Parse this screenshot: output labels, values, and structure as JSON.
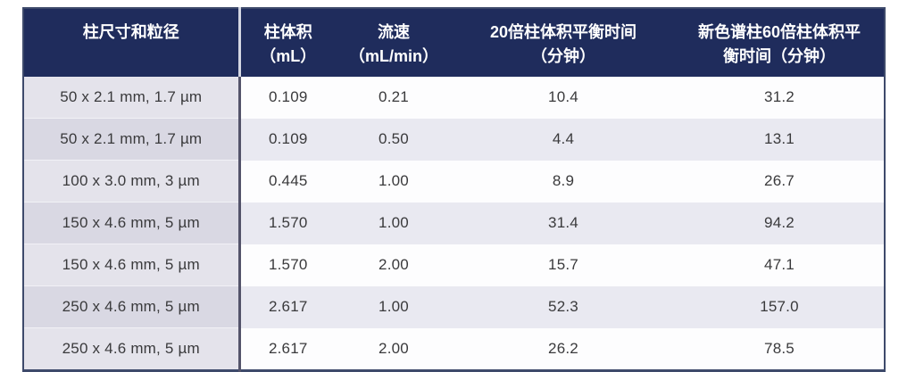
{
  "chart_data": {
    "type": "table",
    "columns": [
      "柱尺寸和粒径",
      "柱体积\n（mL）",
      "流速\n（mL/min）",
      "20倍柱体积平衡时间\n（分钟）",
      "新色谱柱60倍柱体积平\n衡时间（分钟）"
    ],
    "rows": [
      [
        "50 x 2.1 mm, 1.7 µm",
        "0.109",
        "0.21",
        "10.4",
        "31.2"
      ],
      [
        "50 x 2.1 mm, 1.7 µm",
        "0.109",
        "0.50",
        "4.4",
        "13.1"
      ],
      [
        "100 x 3.0 mm, 3 µm",
        "0.445",
        "1.00",
        "8.9",
        "26.7"
      ],
      [
        "150 x 4.6 mm, 5 µm",
        "1.570",
        "1.00",
        "31.4",
        "94.2"
      ],
      [
        "150 x 4.6 mm, 5 µm",
        "1.570",
        "2.00",
        "15.7",
        "47.1"
      ],
      [
        "250 x 4.6 mm, 5 µm",
        "2.617",
        "1.00",
        "52.3",
        "157.0"
      ],
      [
        "250 x 4.6 mm, 5 µm",
        "2.617",
        "2.00",
        "26.2",
        "78.5"
      ]
    ]
  },
  "colors": {
    "header_bg": "#1f2c5c",
    "header_text": "#ffffff",
    "outer_border": "#3e4a6b",
    "body_divider": "#53536a",
    "header_divider": "#d4d7e2",
    "row_plain_bg": "#fdfdfe",
    "row_shaded_bg": "#e9e9f1",
    "label_col_plain_bg": "#e4e3eb",
    "label_col_shaded_bg": "#d9d8e3",
    "body_text": "#3a3a3c"
  }
}
